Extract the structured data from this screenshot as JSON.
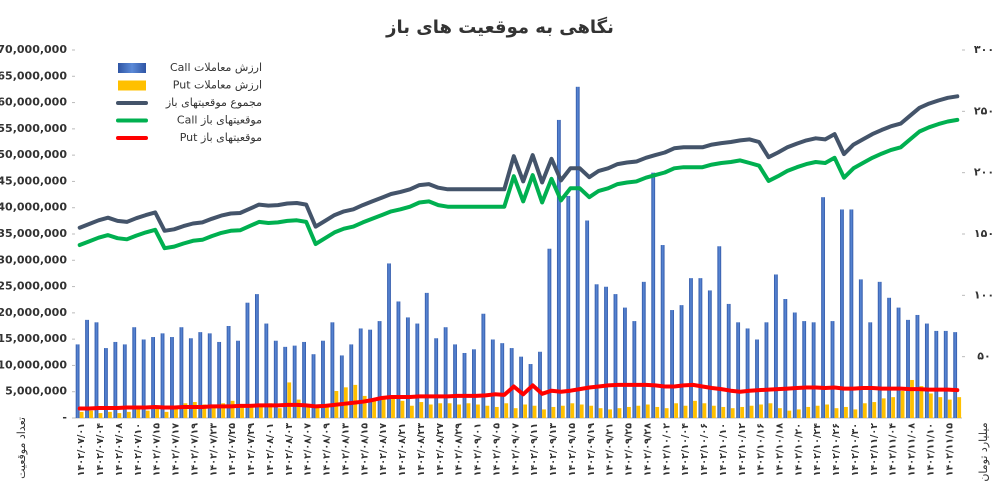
{
  "chart_data": {
    "type": "bar",
    "title": "نگاهی به موقعیت های باز",
    "y_label": "تعداد موقعیت",
    "y2_label": "میلیارد تومان",
    "legend": "upper left",
    "grid": false,
    "ylim": [
      0,
      70000000
    ],
    "yticks": [
      {
        "value": 0,
        "label": "-"
      },
      {
        "value": 5000000,
        "label": "5,000,000"
      },
      {
        "value": 10000000,
        "label": "10,000,000"
      },
      {
        "value": 15000000,
        "label": "15,000,000"
      },
      {
        "value": 20000000,
        "label": "20,000,000"
      },
      {
        "value": 25000000,
        "label": "25,000,000"
      },
      {
        "value": 30000000,
        "label": "30,000,000"
      },
      {
        "value": 35000000,
        "label": "35,000,000"
      },
      {
        "value": 40000000,
        "label": "40,000,000"
      },
      {
        "value": 45000000,
        "label": "45,000,000"
      },
      {
        "value": 50000000,
        "label": "50,000,000"
      },
      {
        "value": 55000000,
        "label": "55,000,000"
      },
      {
        "value": 60000000,
        "label": "60,000,000"
      },
      {
        "value": 65000000,
        "label": "65,000,000"
      },
      {
        "value": 70000000,
        "label": "70,000,000"
      }
    ],
    "y2lim": [
      0,
      300
    ],
    "y2ticks": [
      {
        "value": 50,
        "label": "۵۰"
      },
      {
        "value": 100,
        "label": "۱۰۰"
      },
      {
        "value": 150,
        "label": "۱۵۰"
      },
      {
        "value": 200,
        "label": "۲۰۰"
      },
      {
        "value": 250,
        "label": "۲۵۰"
      },
      {
        "value": 300,
        "label": "۳۰۰"
      }
    ],
    "categories": [
      "۱۴۰۲/۰۷/۰۱",
      null,
      "۱۴۰۲/۰۷/۰۴",
      null,
      "۱۴۰۲/۰۷/۰۸",
      null,
      "۱۴۰۲/۰۷/۱۰",
      null,
      "۱۴۰۲/۰۷/۱۵",
      null,
      "۱۴۰۲/۰۷/۱۷",
      null,
      "۱۴۰۲/۰۷/۱۹",
      null,
      "۱۴۰۲/۰۷/۲۳",
      null,
      "۱۴۰۲/۰۷/۲۵",
      null,
      "۱۴۰۲/۰۷/۲۹",
      null,
      "۱۴۰۲/۰۸/۰۱",
      null,
      "۱۴۰۲/۰۸/۰۳",
      null,
      "۱۴۰۲/۰۸/۰۷",
      null,
      "۱۴۰۲/۰۸/۰۹",
      null,
      "۱۴۰۲/۰۸/۱۳",
      null,
      "۱۴۰۲/۰۸/۱۵",
      null,
      "۱۴۰۲/۰۸/۱۷",
      null,
      "۱۴۰۲/۰۸/۲۱",
      null,
      "۱۴۰۲/۰۸/۲۳",
      null,
      "۱۴۰۲/۰۸/۲۷",
      null,
      "۱۴۰۲/۰۸/۲۹",
      null,
      "۱۴۰۲/۰۹/۰۱",
      null,
      "۱۴۰۲/۰۹/۰۵",
      null,
      "۱۴۰۲/۰۹/۰۷",
      null,
      "۱۴۰۲/۰۹/۱۱",
      null,
      "۱۴۰۲/۰۹/۱۳",
      null,
      "۱۴۰۲/۰۹/۱۵",
      null,
      "۱۴۰۲/۰۹/۱۹",
      null,
      "۱۴۰۲/۰۹/۲۱",
      null,
      "۱۴۰۲/۰۹/۲۵",
      null,
      "۱۴۰۲/۰۹/۲۸",
      null,
      "۱۴۰۲/۱۰/۰۲",
      null,
      "۱۴۰۲/۱۰/۰۴",
      null,
      "۱۴۰۲/۱۰/۰۶",
      null,
      "۱۴۰۲/۱۰/۱۰",
      null,
      "۱۴۰۲/۱۰/۱۲",
      null,
      "۱۴۰۲/۱۰/۱۶",
      null,
      "۱۴۰۲/۱۰/۱۸",
      null,
      "۱۴۰۲/۱۰/۲۰",
      null,
      "۱۴۰۲/۱۰/۲۴",
      null,
      "۱۴۰۲/۱۰/۲۶",
      null,
      "۱۴۰۲/۱۰/۳۰",
      null,
      "۱۴۰۲/۱۱/۰۲",
      null,
      "۱۴۰۲/۱۱/۰۴",
      null,
      "۱۴۰۲/۱۱/۰۸",
      null,
      "۱۴۰۲/۱۱/۱۰",
      null,
      "۱۴۰۲/۱۱/۱۵",
      null
    ],
    "series": [
      {
        "name": "ارزش معاملات Call",
        "type": "bar",
        "axis": "y2",
        "color": "#4472c4",
        "values": [
          60,
          80,
          78,
          57,
          62,
          60,
          74,
          64,
          66,
          69,
          66,
          74,
          65,
          70,
          69,
          62,
          75,
          63,
          94,
          101,
          77,
          63,
          58,
          59,
          62,
          52,
          63,
          78,
          51,
          60,
          73,
          72,
          79,
          126,
          95,
          82,
          77,
          102,
          65,
          74,
          60,
          53,
          56,
          85,
          64,
          61,
          57,
          50,
          44,
          54,
          138,
          243,
          181,
          270,
          161,
          109,
          107,
          101,
          90,
          79,
          111,
          200,
          141,
          88,
          92,
          114,
          114,
          104,
          140,
          93,
          78,
          73,
          64,
          78,
          117,
          97,
          86,
          79,
          78,
          180,
          79,
          170,
          170,
          113,
          78,
          111,
          98,
          90,
          80,
          84,
          77,
          71,
          71,
          70
        ]
      },
      {
        "name": "ارزش معاملات Put",
        "type": "bar",
        "axis": "y2",
        "color": "#ffc000",
        "values": [
          5,
          6,
          4,
          5,
          4,
          5,
          8,
          6,
          9,
          5,
          10,
          12,
          13,
          11,
          10,
          12,
          14,
          10,
          11,
          9,
          12,
          8,
          29,
          15,
          10,
          9,
          11,
          22,
          25,
          27,
          18,
          14,
          16,
          17,
          14,
          10,
          13,
          11,
          12,
          12,
          11,
          12,
          11,
          10,
          9,
          12,
          8,
          11,
          10,
          7,
          9,
          10,
          12,
          11,
          10,
          8,
          7,
          8,
          9,
          10,
          11,
          9,
          8,
          12,
          10,
          14,
          12,
          10,
          9,
          8,
          9,
          10,
          11,
          12,
          8,
          6,
          7,
          9,
          10,
          11,
          8,
          9,
          7,
          12,
          13,
          16,
          17,
          22,
          31,
          26,
          20,
          17,
          15,
          17
        ]
      },
      {
        "name": "مجموع موقعیتهای باز",
        "type": "line",
        "color": "#44546a",
        "values": [
          36200000,
          36900000,
          37600000,
          38100000,
          37500000,
          37300000,
          38000000,
          38600000,
          39100000,
          35600000,
          35900000,
          36500000,
          37000000,
          37200000,
          37900000,
          38500000,
          38900000,
          39000000,
          39800000,
          40600000,
          40400000,
          40500000,
          40800000,
          40900000,
          40600000,
          36400000,
          37500000,
          38600000,
          39300000,
          39700000,
          40500000,
          41200000,
          41900000,
          42600000,
          43000000,
          43500000,
          44300000,
          44500000,
          43800000,
          43500000,
          43500000,
          43500000,
          43500000,
          43500000,
          43500000,
          43500000,
          49800000,
          45000000,
          50000000,
          44800000,
          49300000,
          45200000,
          47500000,
          47500000,
          45800000,
          47000000,
          47500000,
          48300000,
          48600000,
          48800000,
          49500000,
          50000000,
          50500000,
          51300000,
          51500000,
          51500000,
          51500000,
          52000000,
          52300000,
          52500000,
          52800000,
          53000000,
          52500000,
          49600000,
          50500000,
          51500000,
          52200000,
          52800000,
          53200000,
          53000000,
          54000000,
          50200000,
          52000000,
          53000000,
          54000000,
          54800000,
          55500000,
          56000000,
          57500000,
          59000000,
          59800000,
          60400000,
          60900000,
          61200000
        ]
      },
      {
        "name": "موقعیتهای باز Call",
        "type": "line",
        "color": "#00b050",
        "values": [
          32900000,
          33600000,
          34300000,
          34800000,
          34200000,
          34000000,
          34700000,
          35300000,
          35800000,
          32300000,
          32600000,
          33200000,
          33700000,
          33900000,
          34600000,
          35200000,
          35600000,
          35700000,
          36500000,
          37300000,
          37100000,
          37200000,
          37500000,
          37600000,
          37300000,
          33100000,
          34200000,
          35300000,
          36000000,
          36400000,
          37200000,
          37900000,
          38600000,
          39300000,
          39700000,
          40200000,
          41000000,
          41200000,
          40500000,
          40200000,
          40200000,
          40200000,
          40200000,
          40200000,
          40200000,
          40200000,
          46000000,
          41200000,
          46200000,
          41000000,
          45500000,
          41400000,
          43700000,
          43700000,
          42000000,
          43200000,
          43700000,
          44500000,
          44800000,
          45000000,
          45700000,
          46200000,
          46700000,
          47500000,
          47700000,
          47700000,
          47700000,
          48200000,
          48500000,
          48700000,
          49000000,
          48500000,
          48000000,
          45100000,
          46000000,
          47000000,
          47700000,
          48300000,
          48700000,
          48500000,
          49500000,
          45700000,
          47500000,
          48500000,
          49500000,
          50300000,
          51000000,
          51500000,
          53000000,
          54500000,
          55300000,
          55900000,
          56400000,
          56700000
        ]
      },
      {
        "name": "موقعیتهای باز Put",
        "type": "line",
        "color": "#ff0000",
        "values": [
          1800000,
          1800000,
          1900000,
          1900000,
          1900000,
          2000000,
          2000000,
          2000000,
          2100000,
          2000000,
          2000000,
          2100000,
          2100000,
          2100000,
          2200000,
          2200000,
          2200000,
          2300000,
          2300000,
          2400000,
          2400000,
          2400000,
          2500000,
          2500000,
          2400000,
          2200000,
          2300000,
          2500000,
          2700000,
          2900000,
          3100000,
          3400000,
          3800000,
          4000000,
          4000000,
          4000000,
          4100000,
          4100000,
          4100000,
          4100000,
          4200000,
          4200000,
          4200000,
          4300000,
          4500000,
          4400000,
          6000000,
          4500000,
          6200000,
          4600000,
          5200000,
          5000000,
          5200000,
          5500000,
          5800000,
          6000000,
          6200000,
          6300000,
          6300000,
          6300000,
          6300000,
          6200000,
          6000000,
          6000000,
          6200000,
          6300000,
          6000000,
          5700000,
          5500000,
          5200000,
          5000000,
          5200000,
          5300000,
          5400000,
          5500000,
          5600000,
          5700000,
          5800000,
          5800000,
          5700000,
          5800000,
          5600000,
          5600000,
          5700000,
          5700000,
          5600000,
          5600000,
          5600000,
          5500000,
          5500000,
          5400000,
          5400000,
          5400000,
          5300000
        ]
      }
    ]
  }
}
